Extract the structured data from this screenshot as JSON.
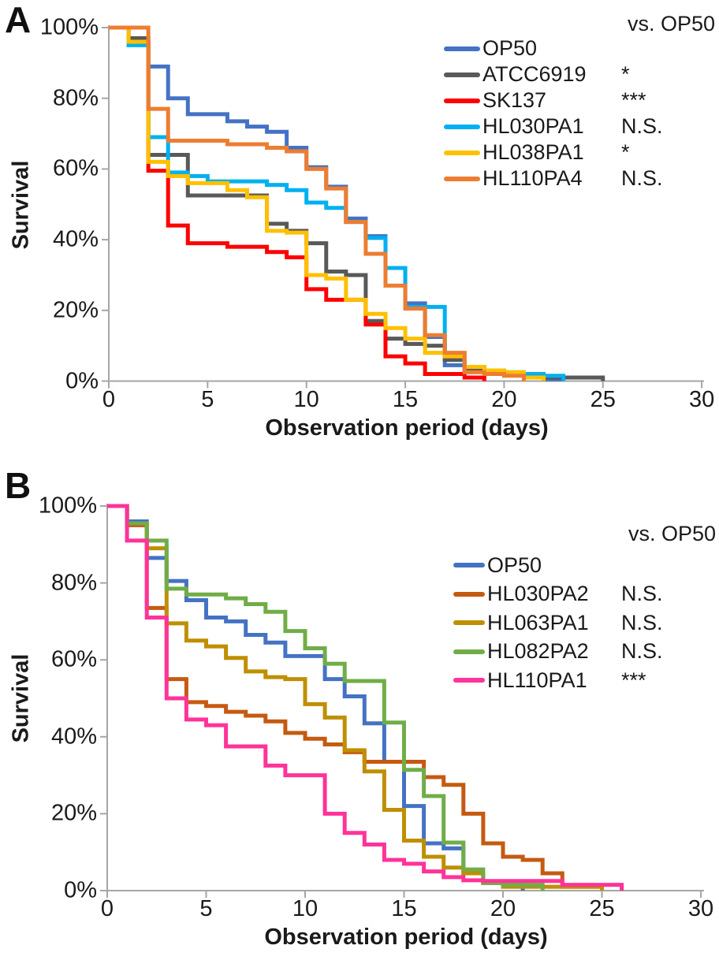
{
  "figure": {
    "background": "#ffffff",
    "description": "Two-panel Kaplan-Meier style survival step chart"
  },
  "chart_data": [
    {
      "panel": "A",
      "type": "line",
      "subtype": "survival-step",
      "comparison_header": "vs. OP50",
      "xlabel": "Observation period (days)",
      "ylabel": "Survival",
      "xlim": [
        0,
        30
      ],
      "ylim_pct": [
        0,
        100
      ],
      "grid": false,
      "legend_position": "top-right",
      "x_tick_labels": [
        "0",
        "5",
        "10",
        "15",
        "20",
        "25",
        "30"
      ],
      "x_tick_values": [
        0,
        5,
        10,
        15,
        20,
        25,
        30
      ],
      "y_tick_labels": [
        "100%",
        "80%",
        "60%",
        "40%",
        "20%",
        "0%"
      ],
      "y_tick_values": [
        100,
        80,
        60,
        40,
        20,
        0
      ],
      "series": [
        {
          "name": "OP50",
          "color": "#4472C4",
          "significance_vs_OP50": "",
          "steps": [
            [
              0,
              100
            ],
            [
              1,
              96
            ],
            [
              2,
              89
            ],
            [
              3,
              80
            ],
            [
              4,
              75.5
            ],
            [
              6,
              73.5
            ],
            [
              7,
              72
            ],
            [
              8,
              70.5
            ],
            [
              9,
              66
            ],
            [
              10,
              60.5
            ],
            [
              11,
              55
            ],
            [
              12,
              46
            ],
            [
              13,
              41
            ],
            [
              14,
              32
            ],
            [
              15,
              22
            ],
            [
              16,
              12.5
            ],
            [
              17,
              4.5
            ],
            [
              18,
              3
            ],
            [
              19,
              2.5
            ],
            [
              20,
              2
            ],
            [
              21,
              1
            ],
            [
              22,
              0.5
            ],
            [
              23,
              0
            ]
          ]
        },
        {
          "name": "ATCC6919",
          "color": "#595959",
          "significance_vs_OP50": "*",
          "steps": [
            [
              0,
              100
            ],
            [
              1,
              97
            ],
            [
              2,
              64
            ],
            [
              4,
              52.5
            ],
            [
              8,
              44.5
            ],
            [
              9,
              42.5
            ],
            [
              10,
              39
            ],
            [
              11,
              31
            ],
            [
              12,
              30
            ],
            [
              13,
              17
            ],
            [
              14,
              12
            ],
            [
              15,
              10.5
            ],
            [
              16,
              10
            ],
            [
              17,
              6
            ],
            [
              18,
              3.5
            ],
            [
              19,
              3
            ],
            [
              20,
              2
            ],
            [
              21,
              1.5
            ],
            [
              22,
              1
            ],
            [
              25,
              0
            ]
          ]
        },
        {
          "name": "SK137",
          "color": "#FF0000",
          "significance_vs_OP50": "***",
          "steps": [
            [
              0,
              100
            ],
            [
              1,
              96
            ],
            [
              2,
              59.5
            ],
            [
              3,
              44
            ],
            [
              4,
              39
            ],
            [
              6,
              38
            ],
            [
              8,
              36.5
            ],
            [
              9,
              35
            ],
            [
              10,
              26
            ],
            [
              11,
              23
            ],
            [
              13,
              16
            ],
            [
              14,
              7
            ],
            [
              15,
              5
            ],
            [
              16,
              2
            ],
            [
              18,
              1
            ],
            [
              19,
              0
            ]
          ]
        },
        {
          "name": "HL030PA1",
          "color": "#00B0F0",
          "significance_vs_OP50": "N.S.",
          "steps": [
            [
              0,
              100
            ],
            [
              1,
              95
            ],
            [
              2,
              69
            ],
            [
              3,
              59
            ],
            [
              4,
              58
            ],
            [
              5,
              56.5
            ],
            [
              8,
              55.5
            ],
            [
              9,
              54
            ],
            [
              10,
              50.5
            ],
            [
              11,
              49
            ],
            [
              12,
              45
            ],
            [
              13,
              40.5
            ],
            [
              14,
              32
            ],
            [
              15,
              21
            ],
            [
              17,
              7.5
            ],
            [
              18,
              4
            ],
            [
              19,
              3
            ],
            [
              20,
              2.5
            ],
            [
              21,
              2
            ],
            [
              22,
              1.5
            ],
            [
              23,
              0
            ]
          ]
        },
        {
          "name": "HL038PA1",
          "color": "#FFC000",
          "significance_vs_OP50": "*",
          "steps": [
            [
              0,
              100
            ],
            [
              1,
              96
            ],
            [
              2,
              62
            ],
            [
              3,
              58
            ],
            [
              4,
              56
            ],
            [
              6,
              54
            ],
            [
              7,
              52
            ],
            [
              8,
              42.5
            ],
            [
              9,
              42
            ],
            [
              10,
              30
            ],
            [
              11,
              29
            ],
            [
              12,
              23
            ],
            [
              13,
              19
            ],
            [
              14,
              15
            ],
            [
              15,
              12
            ],
            [
              16,
              8
            ],
            [
              17,
              7
            ],
            [
              18,
              4
            ],
            [
              19,
              3
            ],
            [
              20,
              2.5
            ],
            [
              21,
              1
            ],
            [
              22,
              0
            ]
          ]
        },
        {
          "name": "HL110PA4",
          "color": "#ED7D31",
          "significance_vs_OP50": "N.S.",
          "steps": [
            [
              0,
              100
            ],
            [
              2,
              77
            ],
            [
              3,
              68
            ],
            [
              4,
              68
            ],
            [
              6,
              67
            ],
            [
              8,
              66
            ],
            [
              9,
              65
            ],
            [
              10,
              60
            ],
            [
              11,
              54.5
            ],
            [
              12,
              45
            ],
            [
              13,
              36
            ],
            [
              14,
              27
            ],
            [
              15,
              20.5
            ],
            [
              16,
              13
            ],
            [
              17,
              8
            ],
            [
              18,
              2.5
            ],
            [
              19,
              2
            ],
            [
              20,
              1.5
            ],
            [
              21,
              0
            ]
          ]
        }
      ]
    },
    {
      "panel": "B",
      "type": "line",
      "subtype": "survival-step",
      "comparison_header": "vs. OP50",
      "xlabel": "Observation period (days)",
      "ylabel": "Survival",
      "xlim": [
        0,
        30
      ],
      "ylim_pct": [
        0,
        100
      ],
      "grid": false,
      "legend_position": "top-right",
      "x_tick_labels": [
        "0",
        "5",
        "10",
        "15",
        "20",
        "25",
        "30"
      ],
      "x_tick_values": [
        0,
        5,
        10,
        15,
        20,
        25,
        30
      ],
      "y_tick_labels": [
        "100%",
        "80%",
        "60%",
        "40%",
        "20%",
        "0%"
      ],
      "y_tick_values": [
        100,
        80,
        60,
        40,
        20,
        0
      ],
      "series": [
        {
          "name": "OP50",
          "color": "#4472C4",
          "significance_vs_OP50": "",
          "steps": [
            [
              0,
              100
            ],
            [
              1,
              96
            ],
            [
              2,
              86.5
            ],
            [
              3,
              80.5
            ],
            [
              4,
              75.5
            ],
            [
              5,
              71
            ],
            [
              6,
              70
            ],
            [
              7,
              66.5
            ],
            [
              8,
              64.5
            ],
            [
              9,
              61
            ],
            [
              11,
              55
            ],
            [
              12,
              50.5
            ],
            [
              13,
              43.5
            ],
            [
              14,
              33.5
            ],
            [
              15,
              22
            ],
            [
              16,
              12.3
            ],
            [
              17,
              11
            ],
            [
              18,
              4.5
            ],
            [
              19,
              2
            ],
            [
              20,
              1.5
            ],
            [
              21,
              0
            ]
          ]
        },
        {
          "name": "HL030PA2",
          "color": "#C55A11",
          "significance_vs_OP50": "N.S.",
          "steps": [
            [
              0,
              100
            ],
            [
              1,
              95
            ],
            [
              2,
              73.5
            ],
            [
              3,
              55
            ],
            [
              4,
              49
            ],
            [
              5,
              48
            ],
            [
              6,
              46.5
            ],
            [
              7,
              45.5
            ],
            [
              8,
              44
            ],
            [
              9,
              41
            ],
            [
              10,
              39.5
            ],
            [
              11,
              38
            ],
            [
              12,
              36
            ],
            [
              13,
              33.5
            ],
            [
              16,
              29.5
            ],
            [
              17,
              27.5
            ],
            [
              18,
              20
            ],
            [
              19,
              12.3
            ],
            [
              20,
              8.8
            ],
            [
              21,
              8
            ],
            [
              22,
              4.5
            ],
            [
              23,
              1
            ],
            [
              25,
              0
            ]
          ]
        },
        {
          "name": "HL063PA1",
          "color": "#BF8F00",
          "significance_vs_OP50": "N.S.",
          "steps": [
            [
              0,
              100
            ],
            [
              1,
              95.5
            ],
            [
              2,
              89
            ],
            [
              3,
              69.5
            ],
            [
              4,
              65
            ],
            [
              5,
              63.5
            ],
            [
              6,
              60.5
            ],
            [
              7,
              57
            ],
            [
              8,
              55.5
            ],
            [
              9,
              55
            ],
            [
              10,
              48.5
            ],
            [
              11,
              45
            ],
            [
              12,
              36.5
            ],
            [
              13,
              31
            ],
            [
              14,
              21
            ],
            [
              15,
              13
            ],
            [
              16,
              8.8
            ],
            [
              17,
              6
            ],
            [
              18,
              4.5
            ],
            [
              19,
              2
            ],
            [
              20,
              1
            ],
            [
              25,
              0
            ]
          ]
        },
        {
          "name": "HL082PA2",
          "color": "#70AD47",
          "significance_vs_OP50": "N.S.",
          "steps": [
            [
              0,
              100
            ],
            [
              1,
              95.5
            ],
            [
              2,
              91
            ],
            [
              3,
              78.5
            ],
            [
              4,
              77
            ],
            [
              6,
              76
            ],
            [
              7,
              74.5
            ],
            [
              8,
              72.5
            ],
            [
              9,
              67.5
            ],
            [
              10,
              63
            ],
            [
              11,
              59
            ],
            [
              12,
              54.5
            ],
            [
              14,
              43.7
            ],
            [
              15,
              31.4
            ],
            [
              16,
              24.6
            ],
            [
              17,
              12.5
            ],
            [
              18,
              5.5
            ],
            [
              19,
              2
            ],
            [
              20,
              1.5
            ],
            [
              22,
              0
            ]
          ]
        },
        {
          "name": "HL110PA1",
          "color": "#FF3399",
          "significance_vs_OP50": "***",
          "steps": [
            [
              0,
              100
            ],
            [
              1,
              91
            ],
            [
              2,
              71
            ],
            [
              3,
              50
            ],
            [
              4,
              44.5
            ],
            [
              5,
              43
            ],
            [
              6,
              37.5
            ],
            [
              8,
              32.5
            ],
            [
              9,
              30
            ],
            [
              11,
              20
            ],
            [
              12,
              15
            ],
            [
              13,
              12
            ],
            [
              14,
              8
            ],
            [
              15,
              7
            ],
            [
              16,
              5
            ],
            [
              17,
              3.5
            ],
            [
              18,
              2.7
            ],
            [
              19,
              2.5
            ],
            [
              23,
              1.5
            ],
            [
              26,
              0
            ]
          ]
        }
      ]
    }
  ]
}
